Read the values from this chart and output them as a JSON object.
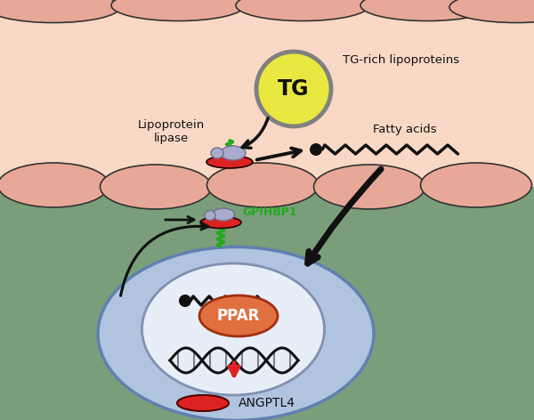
{
  "bg_color": "#f5f5f5",
  "capillary_bg": "#f9d8c5",
  "capillary_cell_color": "#e8a898",
  "tissue_bg": "#7a9e7a",
  "cell_color": "#b0c4e0",
  "cell_border": "#6080b0",
  "nucleus_color": "#e8eef8",
  "nucleus_border": "#8090b0",
  "red_color": "#dd2222",
  "ppar_color": "#e07040",
  "tg_fill": "#e8e840",
  "tg_border": "#808080",
  "green_color": "#22aa22",
  "arrow_color": "#111111",
  "red_arrow_color": "#dd2222",
  "text_color": "#111111",
  "gray_cap": "#aaaacc",
  "gray_cap_border": "#707090",
  "label_lipase": "Lipoprotein\nlipase",
  "label_tg": "TG-rich lipoproteins",
  "label_tg_circle": "TG",
  "label_fatty": "Fatty acids",
  "label_gpihbp1": "GPIHBP1",
  "label_ppar": "PPAR",
  "label_angptl4": "ANGPTL4"
}
